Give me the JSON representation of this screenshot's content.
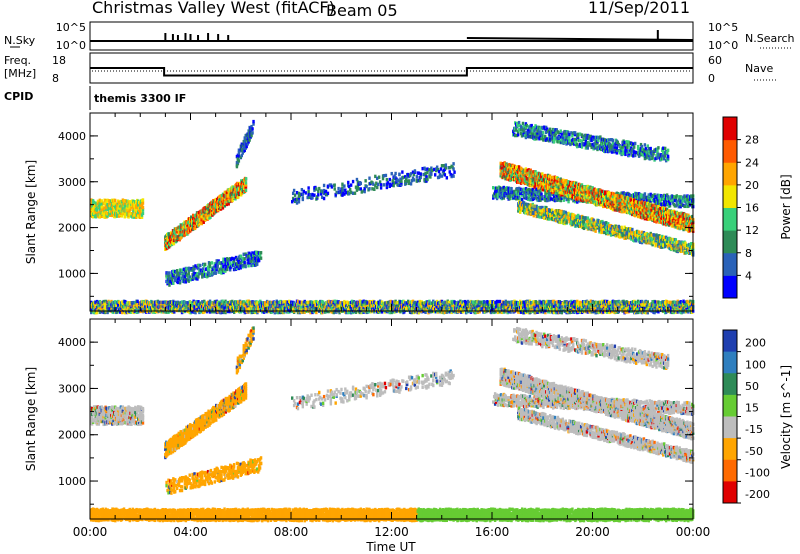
{
  "header": {
    "station_title": "Christmas Valley West (fitACF)",
    "beam": "Beam 05",
    "date": "11/Sep/2011"
  },
  "noise_panel": {
    "left_label": "N.Sky",
    "left_ticks": [
      "10^5",
      "10^0"
    ],
    "right_ticks": [
      "10^5",
      "10^0"
    ],
    "right_label": "N.Search"
  },
  "freq_panel": {
    "left_label_1": "Freq.",
    "left_label_2": "[MHz]",
    "left_ticks": [
      "18",
      "8"
    ],
    "right_ticks": [
      "60",
      "0"
    ],
    "right_label": "Nave"
  },
  "cpid_panel": {
    "label": "CPID",
    "program_name": "themis 3300 IF"
  },
  "colors": {
    "power_scale": [
      "#0000ff",
      "#2a62b8",
      "#2e8b57",
      "#39d07a",
      "#f2e600",
      "#ffa500",
      "#ff5a00",
      "#e00000"
    ],
    "velocity_scale": [
      "#1f3fb0",
      "#2f7fbf",
      "#2e8b57",
      "#66cc33",
      "#bdbdbd",
      "#ffa500",
      "#ff6a00",
      "#e00000"
    ]
  },
  "chart_data": [
    {
      "type": "heatmap",
      "name": "power",
      "xlabel": "",
      "ylabel": "Slant Range [km]",
      "yticks": [
        "1000",
        "2000",
        "3000",
        "4000"
      ],
      "colorbar_label": "Power [dB]",
      "colorbar_ticks": [
        "4",
        "8",
        "12",
        "16",
        "20",
        "24",
        "28"
      ],
      "x_range_hours": [
        0,
        24
      ],
      "y_range_km": [
        180,
        4500
      ],
      "grid": false
    },
    {
      "type": "heatmap",
      "name": "velocity",
      "xlabel": "Time UT",
      "ylabel": "Slant Range [km]",
      "yticks": [
        "1000",
        "2000",
        "3000",
        "4000"
      ],
      "xticks": [
        "00:00",
        "04:00",
        "08:00",
        "12:00",
        "16:00",
        "20:00",
        "00:00"
      ],
      "colorbar_label": "Velocity [m s^-1]",
      "colorbar_ticks": [
        "200",
        "100",
        "50",
        "15",
        "-15",
        "-50",
        "-100",
        "-200"
      ],
      "x_range_hours": [
        0,
        24
      ],
      "y_range_km": [
        180,
        4500
      ],
      "grid": false
    },
    {
      "type": "line",
      "name": "frequency",
      "x_hours": [
        0,
        2.95,
        2.95,
        15.0,
        15.0,
        24
      ],
      "y_mhz": [
        13.0,
        13.0,
        10.5,
        10.5,
        13.0,
        13.0
      ]
    }
  ]
}
